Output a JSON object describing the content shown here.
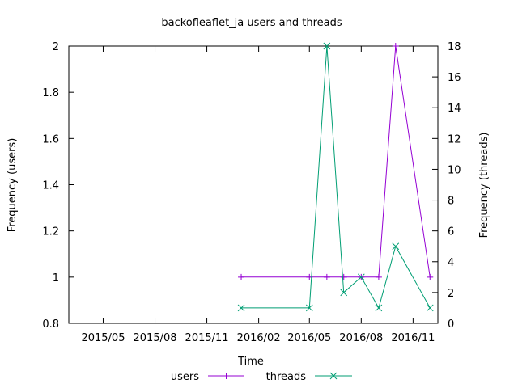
{
  "chart_data": {
    "type": "line",
    "title": "backofleaflet_ja users and threads",
    "xlabel": "Time",
    "ylabel_left": "Frequency (users)",
    "ylabel_right": "Frequency (threads)",
    "x_range": [
      "2015-03-01",
      "2016-12-15"
    ],
    "x_ticks": [
      {
        "date": "2015-05-01",
        "label": "2015/05"
      },
      {
        "date": "2015-08-01",
        "label": "2015/08"
      },
      {
        "date": "2015-11-01",
        "label": "2015/11"
      },
      {
        "date": "2016-02-01",
        "label": "2016/02"
      },
      {
        "date": "2016-05-01",
        "label": "2016/05"
      },
      {
        "date": "2016-08-01",
        "label": "2016/08"
      },
      {
        "date": "2016-11-01",
        "label": "2016/11"
      }
    ],
    "y_left": {
      "min": 0.8,
      "max": 2,
      "ticks": [
        "0.8",
        "1",
        "1.2",
        "1.4",
        "1.6",
        "1.8",
        "2"
      ]
    },
    "y_right": {
      "min": 0,
      "max": 18,
      "ticks": [
        "0",
        "2",
        "4",
        "6",
        "8",
        "10",
        "12",
        "14",
        "16",
        "18"
      ]
    },
    "grid": false,
    "legend_position": "bottom",
    "series": [
      {
        "name": "users",
        "axis": "left",
        "color": "#9400d3",
        "marker": "plus",
        "points": [
          {
            "x": "2016-01-01",
            "y": 1
          },
          {
            "x": "2016-05-01",
            "y": 1
          },
          {
            "x": "2016-06-01",
            "y": 1
          },
          {
            "x": "2016-07-01",
            "y": 1
          },
          {
            "x": "2016-08-01",
            "y": 1
          },
          {
            "x": "2016-09-01",
            "y": 1
          },
          {
            "x": "2016-10-01",
            "y": 2
          },
          {
            "x": "2016-12-01",
            "y": 1
          }
        ]
      },
      {
        "name": "threads",
        "axis": "right",
        "color": "#009e73",
        "marker": "cross",
        "points": [
          {
            "x": "2016-01-01",
            "y": 1
          },
          {
            "x": "2016-05-01",
            "y": 1
          },
          {
            "x": "2016-06-01",
            "y": 18
          },
          {
            "x": "2016-07-01",
            "y": 2
          },
          {
            "x": "2016-08-01",
            "y": 3
          },
          {
            "x": "2016-09-01",
            "y": 1
          },
          {
            "x": "2016-10-01",
            "y": 5
          },
          {
            "x": "2016-12-01",
            "y": 1
          }
        ]
      }
    ]
  }
}
